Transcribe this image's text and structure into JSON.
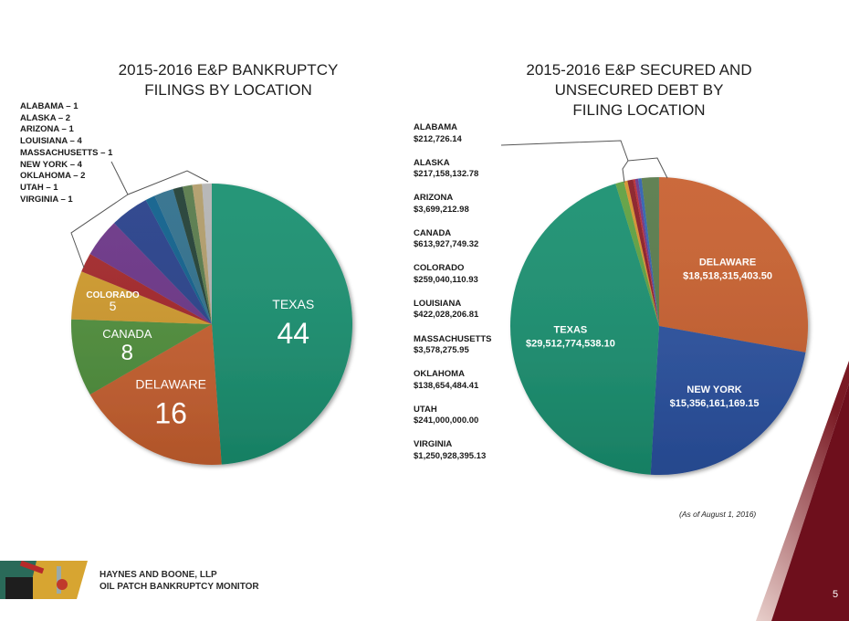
{
  "footer": {
    "firm": "HAYNES AND BOONE, LLP",
    "publication": "OIL PATCH BANKRUPTCY MONITOR",
    "page_number": "5",
    "as_of": "(As of August 1, 2016)"
  },
  "colors": {
    "brand_maroon": "#6e0f1c",
    "texas": "#1a9070",
    "delaware": "#c8602f",
    "new_york": "#2a51a0"
  },
  "chart_data": [
    {
      "type": "pie",
      "title": "2015-2016 E&P BANKRUPTCY FILINGS BY LOCATION",
      "title_lines": [
        "2015-2016 E&P BANKRUPTCY",
        "FILINGS BY LOCATION"
      ],
      "unit": "filings",
      "slices": [
        {
          "label": "TEXAS",
          "value": 44,
          "color": "#1a9070",
          "labeled": true
        },
        {
          "label": "DELAWARE",
          "value": 16,
          "color": "#c8602f",
          "labeled": true
        },
        {
          "label": "CANADA",
          "value": 8,
          "color": "#4f8f3c",
          "labeled": true
        },
        {
          "label": "COLORADO",
          "value": 5,
          "color": "#d09a2c",
          "labeled": true
        },
        {
          "label": "OKLAHOMA",
          "value": 2,
          "color": "#a32529",
          "labeled": false
        },
        {
          "label": "NEW YORK",
          "value": 4,
          "color": "#6b3487",
          "labeled": false
        },
        {
          "label": "LOUISIANA",
          "value": 4,
          "color": "#27408a",
          "labeled": false
        },
        {
          "label": "MASSACHUSETTS",
          "value": 1,
          "color": "#0e5f8c",
          "labeled": false
        },
        {
          "label": "ALASKA",
          "value": 2,
          "color": "#2f6f8c",
          "labeled": false
        },
        {
          "label": "ARIZONA",
          "value": 1,
          "color": "#213f34",
          "labeled": false
        },
        {
          "label": "UTAH",
          "value": 1,
          "color": "#587a4a",
          "labeled": false
        },
        {
          "label": "VIRGINIA",
          "value": 1,
          "color": "#b19c6a",
          "labeled": false
        },
        {
          "label": "ALABAMA",
          "value": 1,
          "color": "#b4b4b4",
          "labeled": false
        }
      ],
      "legend": [
        "ALABAMA – 1",
        "ALASKA – 2",
        "ARIZONA – 1",
        "LOUISIANA – 4",
        "MASSACHUSETTS – 1",
        "NEW YORK – 4",
        "OKLAHOMA – 2",
        "UTAH – 1",
        "VIRGINIA – 1"
      ],
      "legend_placement": "top-left"
    },
    {
      "type": "pie",
      "title": "2015-2016 E&P SECURED AND UNSECURED DEBT BY FILING LOCATION",
      "title_lines": [
        "2015-2016 E&P SECURED AND",
        "UNSECURED DEBT BY",
        "FILING LOCATION"
      ],
      "unit": "USD",
      "slices": [
        {
          "label": "DELAWARE",
          "value": 18518315403.5,
          "display": "$18,518,315,403.50",
          "color": "#c8602f",
          "labeled": true
        },
        {
          "label": "NEW YORK",
          "value": 15356161169.15,
          "display": "$15,356,161,169.15",
          "color": "#2a51a0",
          "labeled": true
        },
        {
          "label": "TEXAS",
          "value": 29512774538.1,
          "display": "$29,512,774,538.10",
          "color": "#1a9070",
          "labeled": true
        },
        {
          "label": "CANADA",
          "value": 613927749.32,
          "display": "$613,927,749.32",
          "color": "#5ea040",
          "labeled": false
        },
        {
          "label": "COLORADO",
          "value": 259040110.93,
          "display": "$259,040,110.93",
          "color": "#d4922c",
          "labeled": false
        },
        {
          "label": "LOUISIANA",
          "value": 422028206.81,
          "display": "$422,028,206.81",
          "color": "#8a1c25",
          "labeled": false
        },
        {
          "label": "OKLAHOMA",
          "value": 138654484.41,
          "display": "$138,654,484.41",
          "color": "#b82832",
          "labeled": false
        },
        {
          "label": "ALASKA",
          "value": 217158132.78,
          "display": "$217,158,132.78",
          "color": "#6b3487",
          "labeled": false
        },
        {
          "label": "UTAH",
          "value": 241000000.0,
          "display": "$241,000,000.00",
          "color": "#2f62b0",
          "labeled": false
        },
        {
          "label": "VIRGINIA",
          "value": 1250928395.13,
          "display": "$1,250,928,395.13",
          "color": "#587a4a",
          "labeled": false
        },
        {
          "label": "ARIZONA",
          "value": 3699212.98,
          "display": "$3,699,212.98",
          "color": "#213f34",
          "labeled": false
        },
        {
          "label": "MASSACHUSETTS",
          "value": 3578275.95,
          "display": "$3,578,275.95",
          "color": "#0e5f8c",
          "labeled": false
        },
        {
          "label": "ALABAMA",
          "value": 212726.14,
          "display": "$212,726.14",
          "color": "#b4b4b4",
          "labeled": false
        }
      ],
      "legend": [
        {
          "name": "ALABAMA",
          "amount": "$212,726.14"
        },
        {
          "name": "ALASKA",
          "amount": "$217,158,132.78"
        },
        {
          "name": "ARIZONA",
          "amount": "$3,699,212.98"
        },
        {
          "name": "CANADA",
          "amount": "$613,927,749.32"
        },
        {
          "name": "COLORADO",
          "amount": "$259,040,110.93"
        },
        {
          "name": "LOUISIANA",
          "amount": "$422,028,206.81"
        },
        {
          "name": "MASSACHUSETTS",
          "amount": "$3,578,275.95"
        },
        {
          "name": "OKLAHOMA",
          "amount": "$138,654,484.41"
        },
        {
          "name": "UTAH",
          "amount": "$241,000,000.00"
        },
        {
          "name": "VIRGINIA",
          "amount": "$1,250,928,395.13"
        }
      ],
      "legend_placement": "left"
    }
  ]
}
